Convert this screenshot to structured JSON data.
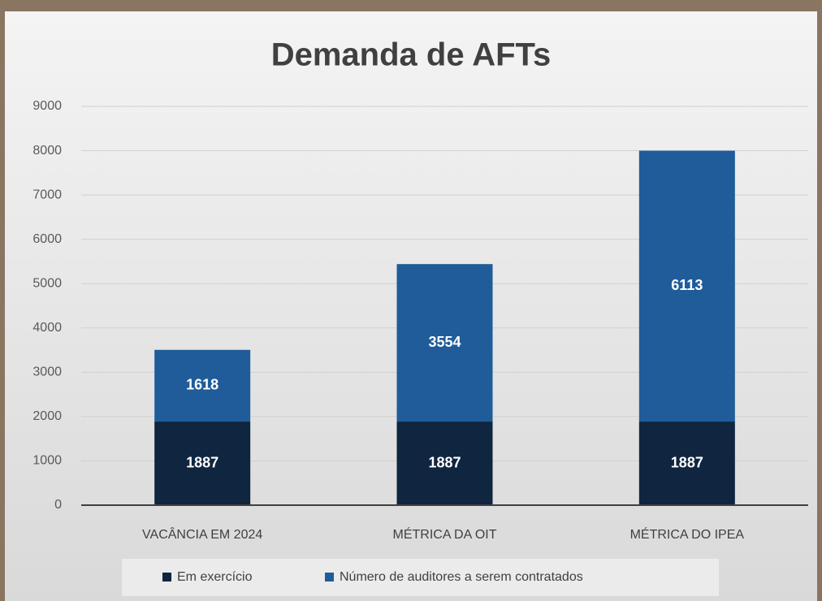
{
  "chart_data": {
    "type": "stacked_bar",
    "title": "Demanda de AFTs",
    "categories": [
      "VACÂNCIA EM 2024",
      "MÉTRICA DA OIT",
      "MÉTRICA DO IPEA"
    ],
    "series": [
      {
        "name": "Em exercício",
        "color": "#0f2540",
        "values": [
          1887,
          1887,
          1887
        ]
      },
      {
        "name": "Número de auditores a serem contratados",
        "color": "#1f5c99",
        "values": [
          1618,
          3554,
          6113
        ]
      }
    ],
    "ylim": [
      0,
      9000
    ],
    "yticks": [
      0,
      1000,
      2000,
      3000,
      4000,
      5000,
      6000,
      7000,
      8000,
      9000
    ],
    "grid": true,
    "legend": "bottom"
  }
}
